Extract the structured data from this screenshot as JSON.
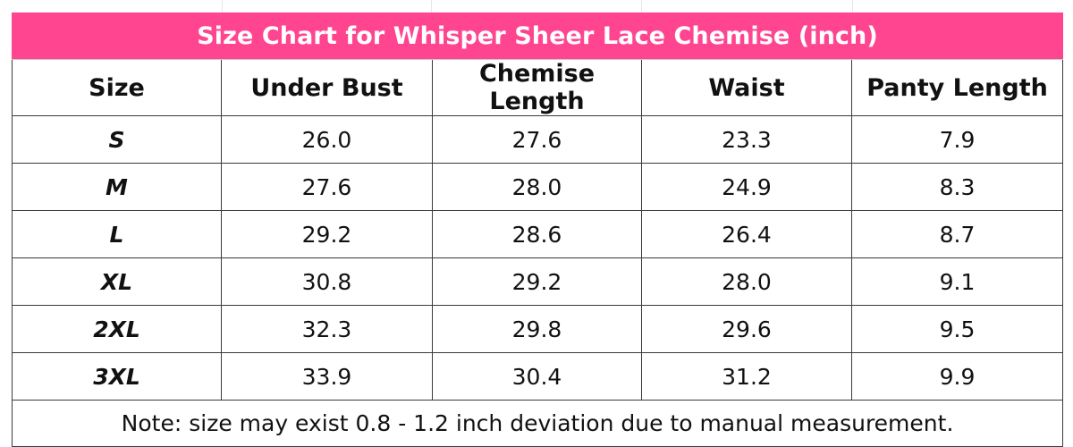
{
  "title": "Size Chart for Whisper Sheer Lace Chemise (inch)",
  "headers": [
    "Size",
    "Under Bust",
    "Chemise Length",
    "Waist",
    "Panty Length"
  ],
  "rows": [
    {
      "size": "S",
      "under_bust": "26.0",
      "chemise_length": "27.6",
      "waist": "23.3",
      "panty_length": "7.9"
    },
    {
      "size": "M",
      "under_bust": "27.6",
      "chemise_length": "28.0",
      "waist": "24.9",
      "panty_length": "8.3"
    },
    {
      "size": "L",
      "under_bust": "29.2",
      "chemise_length": "28.6",
      "waist": "26.4",
      "panty_length": "8.7"
    },
    {
      "size": "XL",
      "under_bust": "30.8",
      "chemise_length": "29.2",
      "waist": "28.0",
      "panty_length": "9.1"
    },
    {
      "size": "2XL",
      "under_bust": "32.3",
      "chemise_length": "29.8",
      "waist": "29.6",
      "panty_length": "9.5"
    },
    {
      "size": "3XL",
      "under_bust": "33.9",
      "chemise_length": "30.4",
      "waist": "31.2",
      "panty_length": "9.9"
    }
  ],
  "note": "Note: size may exist 0.8 - 1.2 inch deviation due to manual measurement.",
  "colors": {
    "title_background": "#ff4590",
    "title_text": "#ffffff",
    "border": "#3a3a3a",
    "text": "#111111"
  }
}
